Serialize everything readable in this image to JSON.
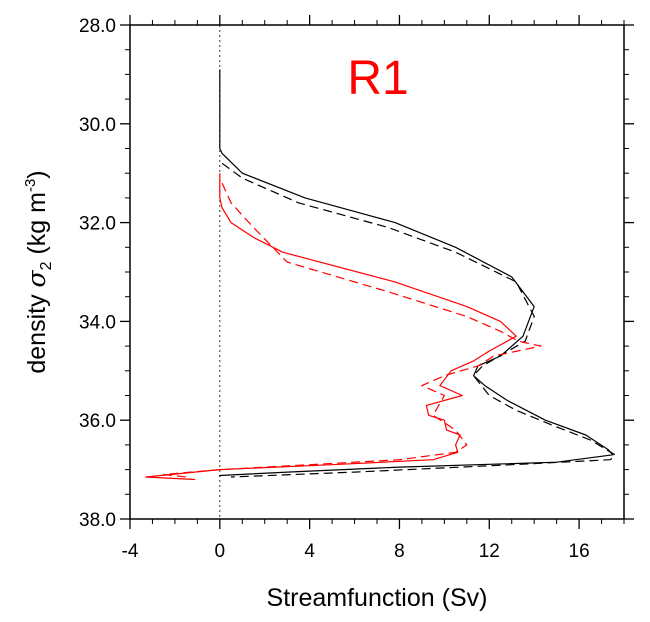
{
  "chart_data": {
    "type": "line",
    "panel_label": "R1",
    "xlabel": "Streamfunction (Sv)",
    "ylabel": {
      "prefix": "density ",
      "symbol": "σ",
      "subscript": "2",
      "unit_open": " (kg m",
      "unit_sup": "-3",
      "unit_close": ")"
    },
    "xlim": [
      -4,
      18
    ],
    "ylim": [
      38.0,
      28.0
    ],
    "y_inverted": true,
    "xticks": [
      -4,
      0,
      4,
      8,
      12,
      16
    ],
    "xtick_labels": [
      "-4",
      "0",
      "4",
      "8",
      "12",
      "16"
    ],
    "yticks": [
      28.0,
      30.0,
      32.0,
      34.0,
      36.0,
      38.0
    ],
    "ytick_labels": [
      "28.0",
      "30.0",
      "32.0",
      "34.0",
      "36.0",
      "38.0"
    ],
    "zero_line": {
      "x": 0,
      "style": "dashed"
    },
    "grid": false,
    "colors": {
      "black": "#000000",
      "red": "#ff0000"
    },
    "series": [
      {
        "color": "#000000",
        "style": "solid",
        "x": [
          0,
          0,
          0,
          0.1,
          1.0,
          3.8,
          7.8,
          10.5,
          13.0,
          14.0,
          13.5,
          12.5,
          11.5,
          11.3,
          11.8,
          12.8,
          14.5,
          16.3,
          17.3,
          17.5,
          15.0,
          8.0,
          3.0,
          0,
          0
        ],
        "y": [
          28.9,
          30.0,
          30.5,
          30.6,
          31.0,
          31.5,
          32.0,
          32.5,
          33.1,
          33.7,
          34.3,
          34.7,
          34.9,
          35.1,
          35.3,
          35.6,
          36.0,
          36.3,
          36.6,
          36.7,
          36.85,
          36.95,
          37.05,
          37.12,
          37.15
        ]
      },
      {
        "color": "#000000",
        "style": "dashed",
        "x": [
          0.1,
          1.0,
          3.5,
          7.5,
          10.5,
          13.2,
          14.0,
          13.6,
          11.7,
          11.3,
          12.0,
          13.2,
          14.8,
          16.5,
          17.6,
          17.4,
          13.0,
          6.0,
          0.5
        ],
        "y": [
          30.8,
          31.1,
          31.6,
          32.1,
          32.6,
          33.2,
          33.9,
          34.4,
          34.9,
          35.1,
          35.5,
          35.8,
          36.1,
          36.4,
          36.7,
          36.8,
          36.9,
          37.05,
          37.15
        ]
      },
      {
        "color": "#ff0000",
        "style": "solid",
        "x": [
          0,
          0,
          0.1,
          0.5,
          1.5,
          2.8,
          7.8,
          11.0,
          12.5,
          13.2,
          12.0,
          11.3,
          10.3,
          9.8,
          10.8,
          9.2,
          9.3,
          10.0,
          10.1,
          10.7,
          10.5,
          10.6,
          9.5,
          5.0,
          0,
          -3.3,
          -1.1
        ],
        "y": [
          31.0,
          31.5,
          31.7,
          32.0,
          32.3,
          32.6,
          33.2,
          33.7,
          34.0,
          34.3,
          34.6,
          34.8,
          35.0,
          35.3,
          35.5,
          35.7,
          35.9,
          36.0,
          36.2,
          36.3,
          36.5,
          36.65,
          36.8,
          36.9,
          37.0,
          37.15,
          37.2
        ]
      },
      {
        "color": "#ff0000",
        "style": "dashed",
        "x": [
          0.1,
          0.5,
          1.5,
          3.0,
          7.5,
          11.0,
          12.5,
          13.3,
          14.3,
          12.2,
          11.5,
          10.0,
          9.0,
          10.0,
          9.5,
          10.5,
          11.0,
          10.5,
          8.0,
          4.0,
          0,
          -2.5,
          -1.5
        ],
        "y": [
          31.2,
          31.6,
          32.1,
          32.8,
          33.4,
          33.9,
          34.2,
          34.4,
          34.5,
          34.7,
          34.9,
          35.1,
          35.3,
          35.5,
          35.9,
          36.2,
          36.5,
          36.65,
          36.8,
          36.9,
          37.0,
          37.1,
          37.15
        ]
      }
    ]
  }
}
